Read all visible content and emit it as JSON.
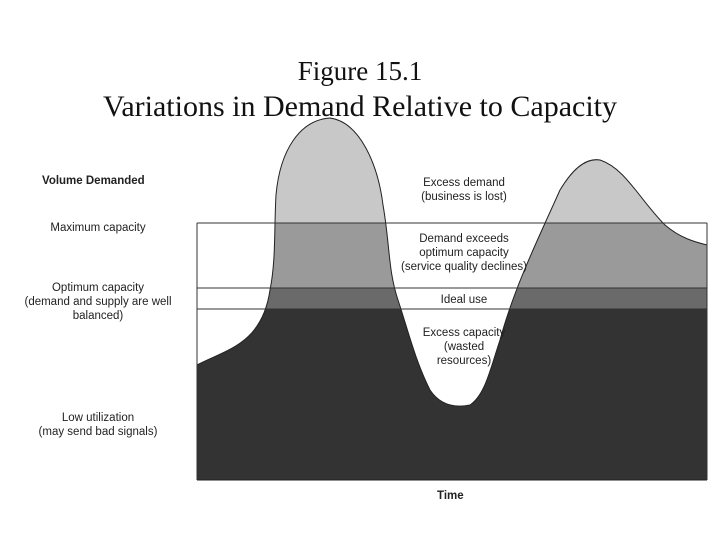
{
  "title": {
    "line1": "Figure 15.1",
    "line2": "Variations in Demand Relative to Capacity"
  },
  "left_labels": {
    "volume": "Volume Demanded",
    "max_capacity": "Maximum capacity",
    "optimum_line1": "Optimum capacity",
    "optimum_line2": "(demand and supply are well",
    "optimum_line3": "balanced)",
    "low_line1": "Low utilization",
    "low_line2": "(may send bad signals)"
  },
  "region_labels": {
    "excess_demand_line1": "Excess demand",
    "excess_demand_line2": "(business is lost)",
    "exceeds_line1": "Demand exceeds",
    "exceeds_line2": "optimum capacity",
    "exceeds_line3": "(service quality declines)",
    "ideal": "Ideal use",
    "excess_cap_line1": "Excess capacity",
    "excess_cap_line2": "(wasted",
    "excess_cap_line3": "resources)"
  },
  "x_axis_label": "Time",
  "colors": {
    "excess_demand": "#c8c8c8",
    "exceeds_optimum": "#9a9a9a",
    "ideal_use": "#6a6a6a",
    "below_optimum": "#333333",
    "background": "#ffffff"
  }
}
